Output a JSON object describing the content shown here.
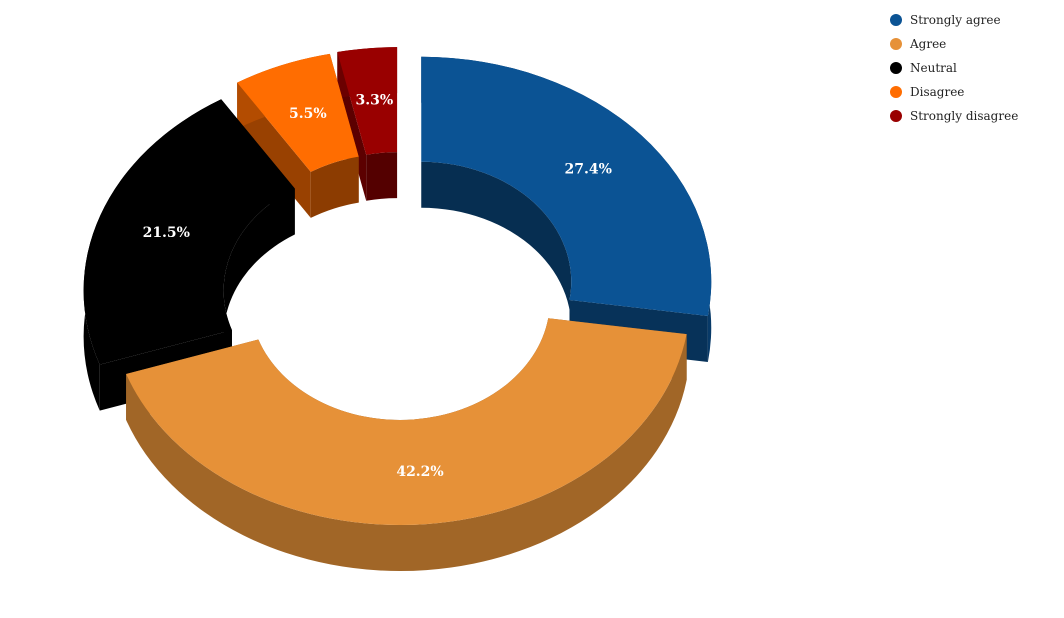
{
  "chart_data": {
    "type": "pie",
    "variant": "3d-donut-exploded",
    "title": "",
    "categories": [
      "Strongly agree",
      "Agree",
      "Neutral",
      "Disagree",
      "Strongly disagree"
    ],
    "values": [
      27.4,
      42.2,
      21.5,
      5.5,
      3.3
    ],
    "labels": [
      "27.4%",
      "42.2%",
      "21.5%",
      "5.5%",
      "3.3%"
    ],
    "colors": [
      "#0b5394",
      "#e69138",
      "#000000",
      "#ff6d01",
      "#990000"
    ],
    "exploded": [
      true,
      false,
      true,
      true,
      true
    ],
    "legend_position": "top-right"
  }
}
